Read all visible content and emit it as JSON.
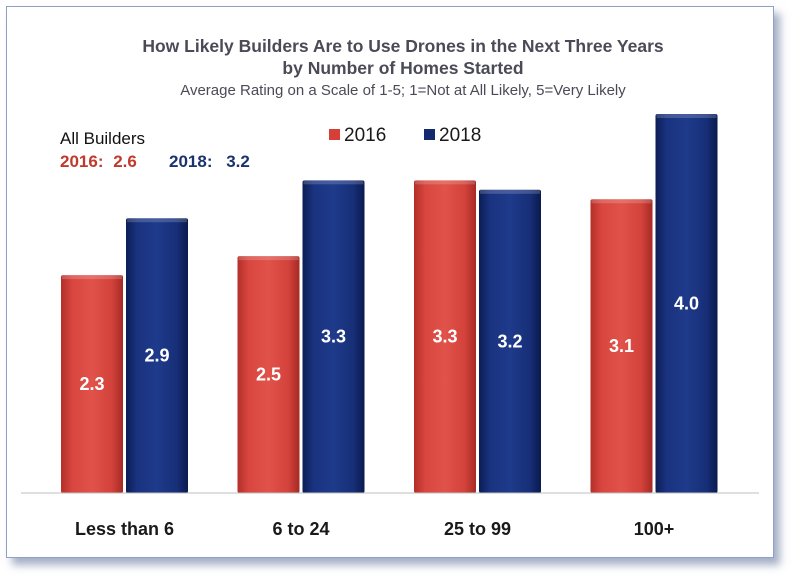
{
  "chart_data": {
    "type": "bar",
    "title": "How Likely Builders Are to Use Drones in the Next Three Years",
    "title_line2": "by Number of Homes Started",
    "subtitle": "Average Rating on a Scale of 1-5; 1=Not at All Likely, 5=Very Likely",
    "categories": [
      "Less than 6",
      "6 to 24",
      "25 to 99",
      "100+"
    ],
    "series": [
      {
        "name": "2016",
        "color": "#d53f38",
        "values": [
          2.3,
          2.5,
          3.3,
          3.1
        ],
        "labels": [
          "2.3",
          "2.5",
          "3.3",
          "3.1"
        ]
      },
      {
        "name": "2018",
        "color": "#132a6e",
        "values": [
          2.9,
          3.3,
          3.2,
          4.0
        ],
        "labels": [
          "2.9",
          "3.3",
          "3.2",
          "4.0"
        ]
      }
    ],
    "ylim": [
      0,
      4.0
    ],
    "grid": false,
    "legend": "top-center",
    "annotation": {
      "heading": "All Builders",
      "items": [
        {
          "label": "2016:",
          "value": "2.6",
          "color": "#c0392b"
        },
        {
          "label": "2018:",
          "value": "3.2",
          "color": "#1b3270"
        }
      ]
    }
  }
}
